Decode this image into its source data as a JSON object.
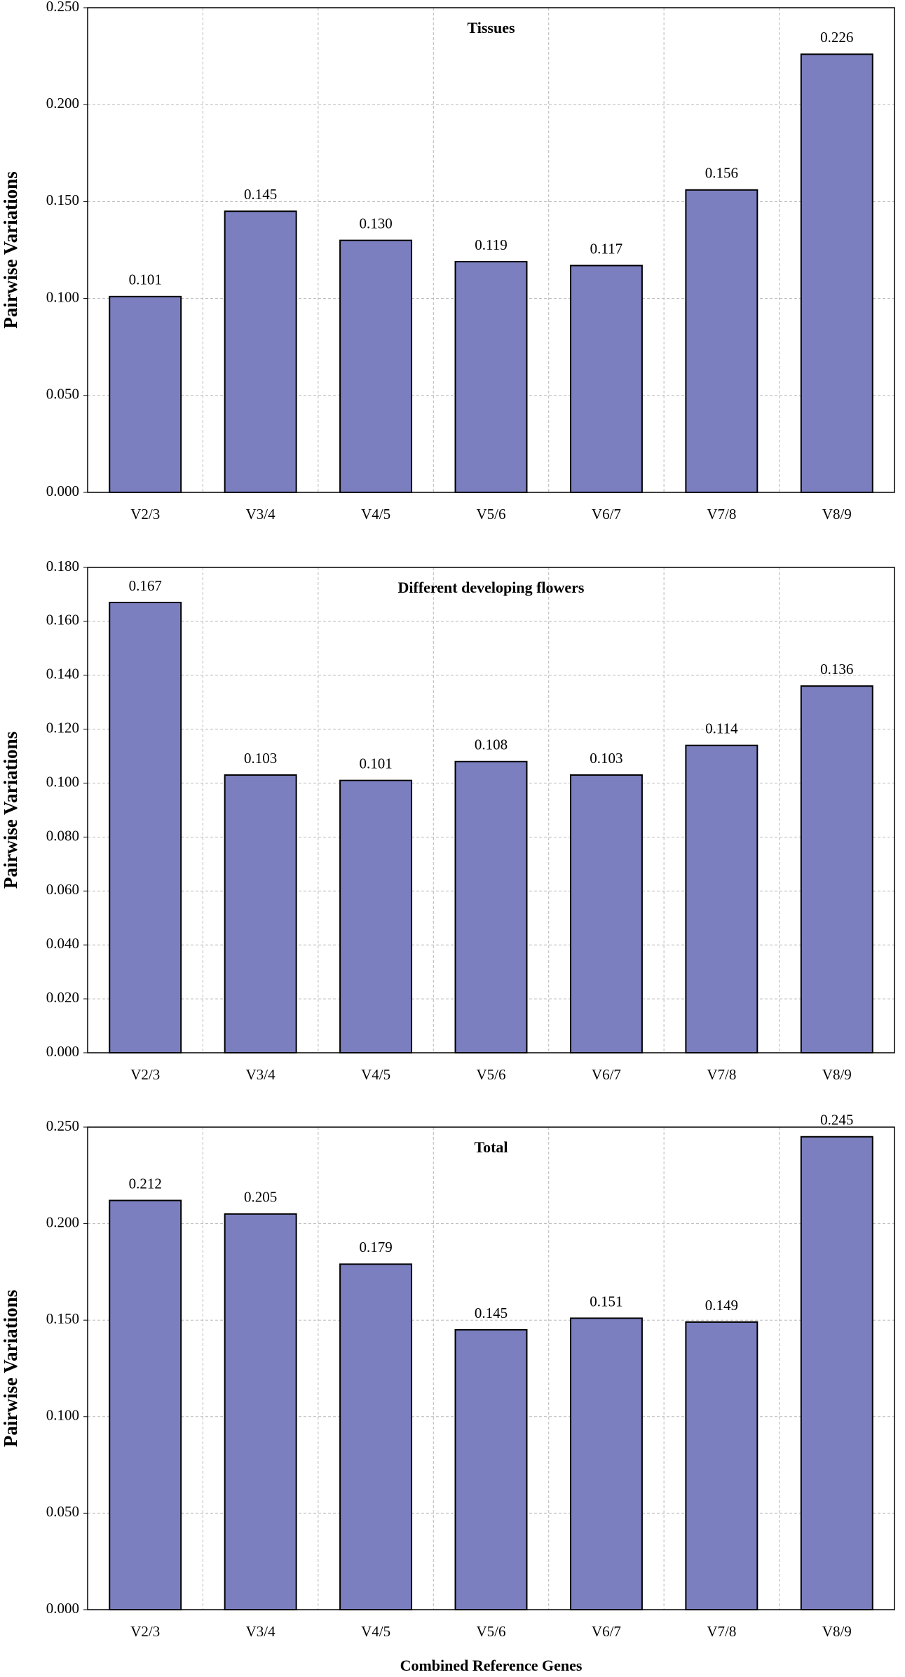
{
  "chart_data": [
    {
      "type": "bar",
      "title": "Tissues",
      "ylabel": "Pairwise Variations",
      "categories": [
        "V2/3",
        "V3/4",
        "V4/5",
        "V5/6",
        "V6/7",
        "V7/8",
        "V8/9"
      ],
      "values": [
        0.101,
        0.145,
        0.13,
        0.119,
        0.117,
        0.156,
        0.226
      ],
      "value_labels": [
        "0.101",
        "0.145",
        "0.130",
        "0.119",
        "0.117",
        "0.156",
        "0.226"
      ],
      "color": "#7b7fbf",
      "ylim": [
        0,
        0.25
      ],
      "yticks": [
        {
          "value": 0,
          "label": "0.000"
        },
        {
          "value": 0.05,
          "label": "0.050"
        },
        {
          "value": 0.1,
          "label": "0.100"
        },
        {
          "value": 0.15,
          "label": "0.150"
        },
        {
          "value": 0.2,
          "label": "0.200"
        },
        {
          "value": 0.25,
          "label": "0.250"
        }
      ],
      "grid": true
    },
    {
      "type": "bar",
      "title": "Different developing flowers",
      "ylabel": "Pairwise Variations",
      "categories": [
        "V2/3",
        "V3/4",
        "V4/5",
        "V5/6",
        "V6/7",
        "V7/8",
        "V8/9"
      ],
      "values": [
        0.167,
        0.103,
        0.101,
        0.108,
        0.103,
        0.114,
        0.136
      ],
      "value_labels": [
        "0.167",
        "0.103",
        "0.101",
        "0.108",
        "0.103",
        "0.114",
        "0.136"
      ],
      "color": "#7b7fbf",
      "ylim": [
        0,
        0.18
      ],
      "yticks": [
        {
          "value": 0,
          "label": "0.000"
        },
        {
          "value": 0.02,
          "label": "0.020"
        },
        {
          "value": 0.04,
          "label": "0.040"
        },
        {
          "value": 0.06,
          "label": "0.060"
        },
        {
          "value": 0.08,
          "label": "0.080"
        },
        {
          "value": 0.1,
          "label": "0.100"
        },
        {
          "value": 0.12,
          "label": "0.120"
        },
        {
          "value": 0.14,
          "label": "0.140"
        },
        {
          "value": 0.16,
          "label": "0.160"
        },
        {
          "value": 0.18,
          "label": "0.180"
        }
      ],
      "grid": true
    },
    {
      "type": "bar",
      "title": "Total",
      "ylabel": "Pairwise Variations",
      "xlabel": "Combined Reference Genes",
      "categories": [
        "V2/3",
        "V3/4",
        "V4/5",
        "V5/6",
        "V6/7",
        "V7/8",
        "V8/9"
      ],
      "values": [
        0.212,
        0.205,
        0.179,
        0.145,
        0.151,
        0.149,
        0.245
      ],
      "value_labels": [
        "0.212",
        "0.205",
        "0.179",
        "0.145",
        "0.151",
        "0.149",
        "0.245"
      ],
      "color": "#7b7fbf",
      "ylim": [
        0,
        0.25
      ],
      "yticks": [
        {
          "value": 0,
          "label": "0.000"
        },
        {
          "value": 0.05,
          "label": "0.050"
        },
        {
          "value": 0.1,
          "label": "0.100"
        },
        {
          "value": 0.15,
          "label": "0.150"
        },
        {
          "value": 0.2,
          "label": "0.200"
        },
        {
          "value": 0.25,
          "label": "0.250"
        }
      ],
      "grid": true
    }
  ]
}
